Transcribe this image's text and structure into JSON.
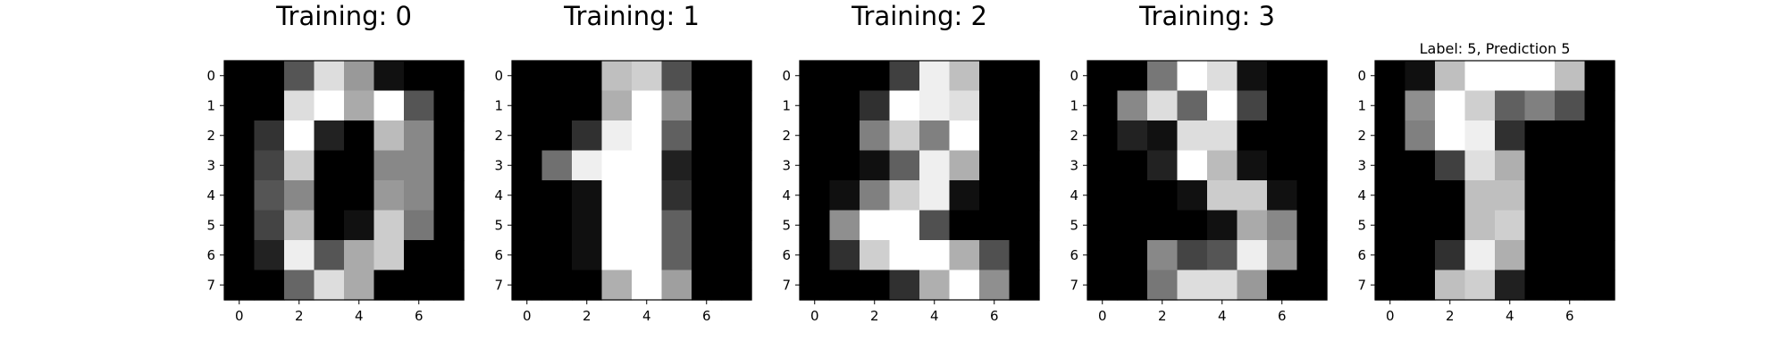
{
  "chart_data": [
    {
      "type": "heatmap",
      "title": "Training: 0",
      "colormap": "gray",
      "x_ticks": [
        "0",
        "2",
        "4",
        "6"
      ],
      "y_ticks": [
        "0",
        "1",
        "2",
        "3",
        "4",
        "5",
        "6",
        "7"
      ],
      "grid": false,
      "values": [
        [
          0,
          0,
          5,
          13,
          9,
          1,
          0,
          0
        ],
        [
          0,
          0,
          13,
          15,
          10,
          15,
          5,
          0
        ],
        [
          0,
          3,
          15,
          2,
          0,
          11,
          8,
          0
        ],
        [
          0,
          4,
          12,
          0,
          0,
          8,
          8,
          0
        ],
        [
          0,
          5,
          8,
          0,
          0,
          9,
          8,
          0
        ],
        [
          0,
          4,
          11,
          0,
          1,
          12,
          7,
          0
        ],
        [
          0,
          2,
          14,
          5,
          10,
          12,
          0,
          0
        ],
        [
          0,
          0,
          6,
          13,
          10,
          0,
          0,
          0
        ]
      ]
    },
    {
      "type": "heatmap",
      "title": "Training: 1",
      "colormap": "gray",
      "x_ticks": [
        "0",
        "2",
        "4",
        "6"
      ],
      "y_ticks": [
        "0",
        "1",
        "2",
        "3",
        "4",
        "5",
        "6",
        "7"
      ],
      "grid": false,
      "values": [
        [
          0,
          0,
          0,
          12,
          13,
          5,
          0,
          0
        ],
        [
          0,
          0,
          0,
          11,
          16,
          9,
          0,
          0
        ],
        [
          0,
          0,
          3,
          15,
          16,
          6,
          0,
          0
        ],
        [
          0,
          7,
          15,
          16,
          16,
          2,
          0,
          0
        ],
        [
          0,
          0,
          1,
          16,
          16,
          3,
          0,
          0
        ],
        [
          0,
          0,
          1,
          16,
          16,
          6,
          0,
          0
        ],
        [
          0,
          0,
          1,
          16,
          16,
          6,
          0,
          0
        ],
        [
          0,
          0,
          0,
          11,
          16,
          10,
          0,
          0
        ]
      ]
    },
    {
      "type": "heatmap",
      "title": "Training: 2",
      "colormap": "gray",
      "x_ticks": [
        "0",
        "2",
        "4",
        "6"
      ],
      "y_ticks": [
        "0",
        "1",
        "2",
        "3",
        "4",
        "5",
        "6",
        "7"
      ],
      "grid": false,
      "values": [
        [
          0,
          0,
          0,
          4,
          15,
          12,
          0,
          0
        ],
        [
          0,
          0,
          3,
          16,
          15,
          14,
          0,
          0
        ],
        [
          0,
          0,
          8,
          13,
          8,
          16,
          0,
          0
        ],
        [
          0,
          0,
          1,
          6,
          15,
          11,
          0,
          0
        ],
        [
          0,
          1,
          8,
          13,
          15,
          1,
          0,
          0
        ],
        [
          0,
          9,
          16,
          16,
          5,
          0,
          0,
          0
        ],
        [
          0,
          3,
          13,
          16,
          16,
          11,
          5,
          0
        ],
        [
          0,
          0,
          0,
          3,
          11,
          16,
          9,
          0
        ]
      ]
    },
    {
      "type": "heatmap",
      "title": "Training: 3",
      "colormap": "gray",
      "x_ticks": [
        "0",
        "2",
        "4",
        "6"
      ],
      "y_ticks": [
        "0",
        "1",
        "2",
        "3",
        "4",
        "5",
        "6",
        "7"
      ],
      "grid": false,
      "values": [
        [
          0,
          0,
          7,
          15,
          13,
          1,
          0,
          0
        ],
        [
          0,
          8,
          13,
          6,
          15,
          4,
          0,
          0
        ],
        [
          0,
          2,
          1,
          13,
          13,
          0,
          0,
          0
        ],
        [
          0,
          0,
          2,
          15,
          11,
          1,
          0,
          0
        ],
        [
          0,
          0,
          0,
          1,
          12,
          12,
          1,
          0
        ],
        [
          0,
          0,
          0,
          0,
          1,
          10,
          8,
          0
        ],
        [
          0,
          0,
          8,
          4,
          5,
          14,
          9,
          0
        ],
        [
          0,
          0,
          7,
          13,
          13,
          9,
          0,
          0
        ]
      ]
    },
    {
      "type": "heatmap",
      "title": "Label: 5, Prediction 5",
      "colormap": "gray",
      "x_ticks": [
        "0",
        "2",
        "4",
        "6"
      ],
      "y_ticks": [
        "0",
        "1",
        "2",
        "3",
        "4",
        "5",
        "6",
        "7"
      ],
      "grid": false,
      "values": [
        [
          0,
          1,
          12,
          16,
          16,
          16,
          12,
          0
        ],
        [
          0,
          9,
          16,
          13,
          6,
          8,
          5,
          0
        ],
        [
          0,
          8,
          16,
          15,
          3,
          0,
          0,
          0
        ],
        [
          0,
          0,
          4,
          14,
          11,
          0,
          0,
          0
        ],
        [
          0,
          0,
          0,
          12,
          12,
          0,
          0,
          0
        ],
        [
          0,
          0,
          0,
          12,
          13,
          0,
          0,
          0
        ],
        [
          0,
          0,
          3,
          15,
          11,
          0,
          0,
          0
        ],
        [
          0,
          0,
          12,
          13,
          2,
          0,
          0,
          0
        ]
      ]
    }
  ]
}
